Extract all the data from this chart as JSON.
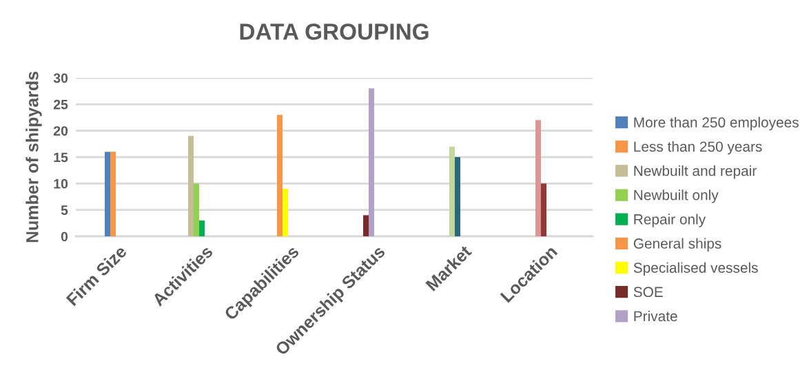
{
  "chart_data": {
    "type": "bar",
    "title": "DATA GROUPING",
    "ylabel": "Number of shipyards",
    "categories": [
      "Firm Size",
      "Activities",
      "Capabilities",
      "Ownership Status",
      "Market",
      "Location"
    ],
    "series": [
      {
        "name": "More than 250 employees",
        "color": "#4f81bd",
        "values": [
          16,
          null,
          null,
          null,
          null,
          null
        ]
      },
      {
        "name": "Less than 250 years",
        "color": "#f79646",
        "values": [
          16,
          null,
          null,
          null,
          null,
          null
        ]
      },
      {
        "name": "Newbuilt and repair",
        "color": "#c4bd97",
        "values": [
          null,
          19,
          null,
          null,
          null,
          null
        ]
      },
      {
        "name": "Newbuilt only",
        "color": "#92d050",
        "values": [
          null,
          10,
          null,
          null,
          null,
          null
        ]
      },
      {
        "name": "Repair only",
        "color": "#00b050",
        "values": [
          null,
          3,
          null,
          null,
          null,
          null
        ]
      },
      {
        "name": "General ships",
        "color": "#f79646",
        "values": [
          null,
          null,
          23,
          null,
          null,
          null
        ]
      },
      {
        "name": "Specialised vessels",
        "color": "#ffff00",
        "values": [
          null,
          null,
          9,
          null,
          null,
          null
        ]
      },
      {
        "name": "SOE",
        "color": "#772c2a",
        "values": [
          null,
          null,
          null,
          4,
          null,
          null
        ]
      },
      {
        "name": "Private",
        "color": "#b2a1c7",
        "values": [
          null,
          null,
          null,
          28,
          null,
          null
        ]
      },
      {
        "color": "#c3d69b",
        "values": [
          null,
          null,
          null,
          null,
          17,
          null
        ]
      },
      {
        "color": "#276a7c",
        "values": [
          null,
          null,
          null,
          null,
          15,
          null
        ]
      },
      {
        "color": "#d99694",
        "values": [
          null,
          null,
          null,
          null,
          null,
          22
        ]
      },
      {
        "color": "#953735",
        "values": [
          null,
          null,
          null,
          null,
          null,
          10
        ]
      }
    ],
    "ylim": [
      0,
      30
    ],
    "yticks": [
      0,
      5,
      10,
      15,
      20,
      25,
      30
    ],
    "grid": "y",
    "legend": "right"
  }
}
